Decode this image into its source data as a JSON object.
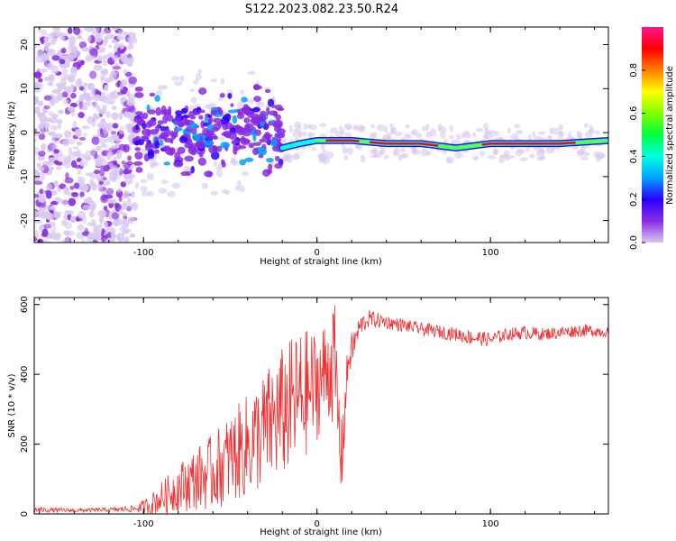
{
  "title": "S122.2023.082.23.50.R24",
  "chart_data": [
    {
      "type": "heatmap",
      "title": "S122.2023.082.23.50.R24",
      "xlabel": "Height of straight line (km)",
      "ylabel": "Frequency (Hz)",
      "xlim": [
        -163,
        168
      ],
      "ylim": [
        -25,
        24
      ],
      "x_ticks": [
        -100,
        0,
        100
      ],
      "x_tick_labels": [
        "-100",
        "0",
        "100"
      ],
      "y_ticks": [
        -20,
        -10,
        0,
        10,
        20
      ],
      "y_tick_labels": [
        "-20",
        "-10",
        "0",
        "10",
        "20"
      ],
      "ridge": {
        "description_points_x": [
          -20,
          -10,
          0,
          20,
          40,
          60,
          80,
          100,
          120,
          140,
          168
        ],
        "description_points_y": [
          -3.5,
          -2.5,
          -1.8,
          -1.8,
          -2.5,
          -2.5,
          -3.5,
          -2.5,
          -2.5,
          -2.5,
          -1.8
        ]
      },
      "colorbar": {
        "label": "Normalized spectral amplitude",
        "range": [
          0.0,
          1.0
        ],
        "ticks": [
          0.0,
          0.2,
          0.4,
          0.6,
          0.8
        ],
        "tick_labels": [
          "0.0",
          "0.2",
          "0.4",
          "0.6",
          "0.8"
        ],
        "colors": [
          "#d8c8f0",
          "#8a2be2",
          "#2a00ff",
          "#00a0ff",
          "#00ffe0",
          "#00ff40",
          "#80ff00",
          "#ffff00",
          "#ff8000",
          "#ff0000",
          "#ff1493"
        ]
      },
      "grid": false
    },
    {
      "type": "line",
      "xlabel": "Height of straight line (km)",
      "ylabel": "SNR (10 * v/v)",
      "xlim": [
        -163,
        168
      ],
      "ylim": [
        0,
        620
      ],
      "x_ticks": [
        -100,
        0,
        100
      ],
      "x_tick_labels": [
        "-100",
        "0",
        "100"
      ],
      "y_ticks": [
        0,
        200,
        400,
        600
      ],
      "y_tick_labels": [
        "0",
        "200",
        "400",
        "600"
      ],
      "color": "#ee3030",
      "series": [
        {
          "x": [
            -163,
            -140,
            -120,
            -105,
            -98,
            -90,
            -80,
            -70,
            -60,
            -50,
            -40,
            -30,
            -20,
            -10,
            0,
            5,
            10,
            14,
            18,
            25,
            30,
            40,
            60,
            80,
            90,
            100,
            110,
            120,
            130,
            140,
            150,
            160,
            168
          ],
          "y": [
            12,
            10,
            12,
            15,
            22,
            45,
            75,
            100,
            120,
            160,
            195,
            240,
            290,
            330,
            370,
            410,
            440,
            150,
            440,
            540,
            560,
            550,
            530,
            515,
            505,
            500,
            515,
            520,
            515,
            520,
            525,
            525,
            520
          ],
          "noise_amplitude": [
            8,
            6,
            6,
            10,
            25,
            45,
            70,
            90,
            110,
            130,
            150,
            170,
            190,
            200,
            160,
            150,
            180,
            120,
            60,
            30,
            25,
            20,
            18,
            20,
            22,
            20,
            18,
            20,
            18,
            18,
            18,
            18,
            15
          ]
        }
      ],
      "grid": false
    }
  ]
}
